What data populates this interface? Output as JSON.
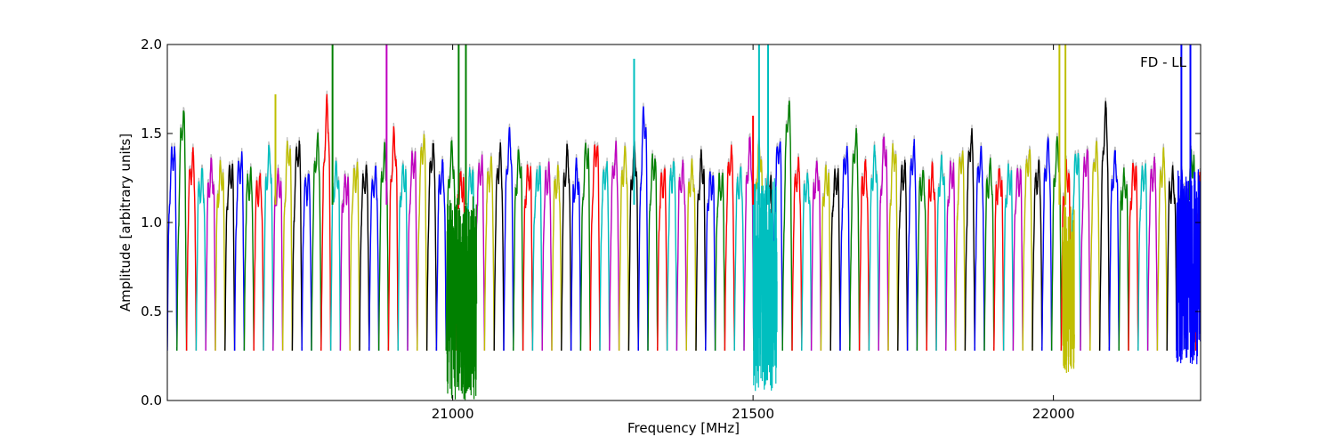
{
  "chart_data": {
    "type": "line",
    "title": "",
    "xlabel": "Frequency [MHz]",
    "ylabel": "Amplitude [arbitrary units]",
    "annotation": "FD - LL",
    "annotation_position": "top-right",
    "xlim": [
      20525,
      22245
    ],
    "ylim": [
      0.0,
      2.0
    ],
    "xticks": [
      21000,
      21500,
      22000
    ],
    "xtick_labels": [
      "21000",
      "21500",
      "22000"
    ],
    "yticks": [
      0.0,
      0.5,
      1.0,
      1.5,
      2.0
    ],
    "ytick_labels": [
      "0.0",
      "0.5",
      "1.0",
      "1.5",
      "2.0"
    ],
    "grid": false,
    "legend": false,
    "background_trace_color": "#bbbbbb",
    "color_cycle": [
      "#0000ff",
      "#008000",
      "#ff0000",
      "#00bfbf",
      "#bf00bf",
      "#bfbf00",
      "#000000"
    ],
    "band_width_mhz": 16,
    "band_floor": 0.28,
    "band_peak_levels": [
      1.38,
      1.58,
      1.33,
      1.22,
      1.28,
      1.26,
      1.28,
      1.32,
      1.22,
      1.2,
      1.35,
      1.22,
      1.4,
      1.4,
      1.2,
      1.42,
      1.62,
      1.28,
      1.2,
      1.27,
      1.24,
      1.24,
      1.35,
      1.45,
      1.26,
      1.35,
      1.43,
      1.38,
      1.27,
      1.38,
      1.22,
      1.24,
      1.3,
      1.28,
      1.35,
      1.45,
      1.35,
      1.27,
      1.25,
      1.25,
      1.24,
      1.35,
      1.27,
      1.4,
      1.41,
      1.27,
      1.36,
      1.35
    ],
    "spikes": [
      {
        "x": 20705,
        "y": 1.72,
        "series": 5
      },
      {
        "x": 20800,
        "y": 2.0,
        "series": 1
      },
      {
        "x": 20890,
        "y": 2.0,
        "series": 4
      },
      {
        "x": 21010,
        "y": 2.0,
        "series": 1
      },
      {
        "x": 21022,
        "y": 2.0,
        "series": 1
      },
      {
        "x": 21302,
        "y": 1.92,
        "series": 3
      },
      {
        "x": 21500,
        "y": 1.6,
        "series": 2
      },
      {
        "x": 21510,
        "y": 2.0,
        "series": 3
      },
      {
        "x": 21525,
        "y": 2.0,
        "series": 3
      },
      {
        "x": 22010,
        "y": 2.0,
        "series": 5
      },
      {
        "x": 22020,
        "y": 2.0,
        "series": 5
      },
      {
        "x": 22213,
        "y": 2.0,
        "series": 0
      },
      {
        "x": 22228,
        "y": 2.0,
        "series": 0
      }
    ],
    "noisy_regions": [
      {
        "from": 20990,
        "to": 21040,
        "min": 0.0,
        "max": 1.15,
        "series": 1
      },
      {
        "from": 21500,
        "to": 21540,
        "min": 0.05,
        "max": 1.25,
        "series": 3
      },
      {
        "from": 22015,
        "to": 22035,
        "min": 0.15,
        "max": 1.1,
        "series": 5
      },
      {
        "from": 22205,
        "to": 22245,
        "min": 0.2,
        "max": 1.3,
        "series": 0
      }
    ]
  }
}
